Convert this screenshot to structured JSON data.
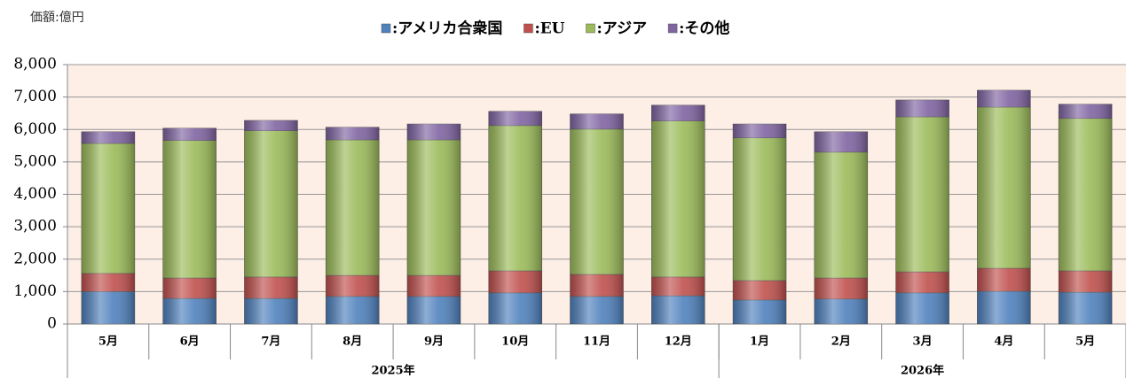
{
  "chart_data": {
    "type": "stacked_bar",
    "y_label": "価額:億円",
    "groups": [
      {
        "label": "2025年",
        "categories": [
          "5月",
          "6月",
          "7月",
          "8月",
          "9月",
          "10月",
          "11月",
          "12月"
        ]
      },
      {
        "label": "2026年",
        "categories": [
          "1月",
          "2月",
          "3月",
          "4月",
          "5月"
        ]
      }
    ],
    "series": [
      {
        "name": ":アメリカ合衆国",
        "color": "#4f81bd",
        "values": [
          1000,
          790,
          790,
          850,
          850,
          960,
          850,
          870,
          740,
          770,
          960,
          1010,
          980
        ]
      },
      {
        "name": ":EU",
        "color": "#c0504d",
        "values": [
          560,
          630,
          660,
          650,
          650,
          680,
          680,
          580,
          600,
          650,
          650,
          710,
          660
        ]
      },
      {
        "name": ":アジア",
        "color": "#9bbb59",
        "values": [
          4010,
          4240,
          4510,
          4180,
          4180,
          4480,
          4480,
          4810,
          4400,
          3880,
          4780,
          4970,
          4700
        ]
      },
      {
        "name": ":その他",
        "color": "#8064a2",
        "values": [
          360,
          380,
          320,
          390,
          490,
          440,
          470,
          490,
          430,
          630,
          520,
          520,
          440
        ]
      }
    ],
    "ylim": [
      0,
      8000
    ],
    "yticks": [
      0,
      {
        "value": 1000,
        "label": "1,000"
      },
      {
        "value": 2000,
        "label": "2,000"
      },
      {
        "value": 3000,
        "label": "3,000"
      },
      {
        "value": 4000,
        "label": "4,000"
      },
      {
        "value": 5000,
        "label": "5,000"
      },
      {
        "value": 6000,
        "label": "6,000"
      },
      {
        "value": 7000,
        "label": "7,000"
      },
      {
        "value": 8000,
        "label": "8,000"
      }
    ],
    "grid": true,
    "legend": "top"
  }
}
